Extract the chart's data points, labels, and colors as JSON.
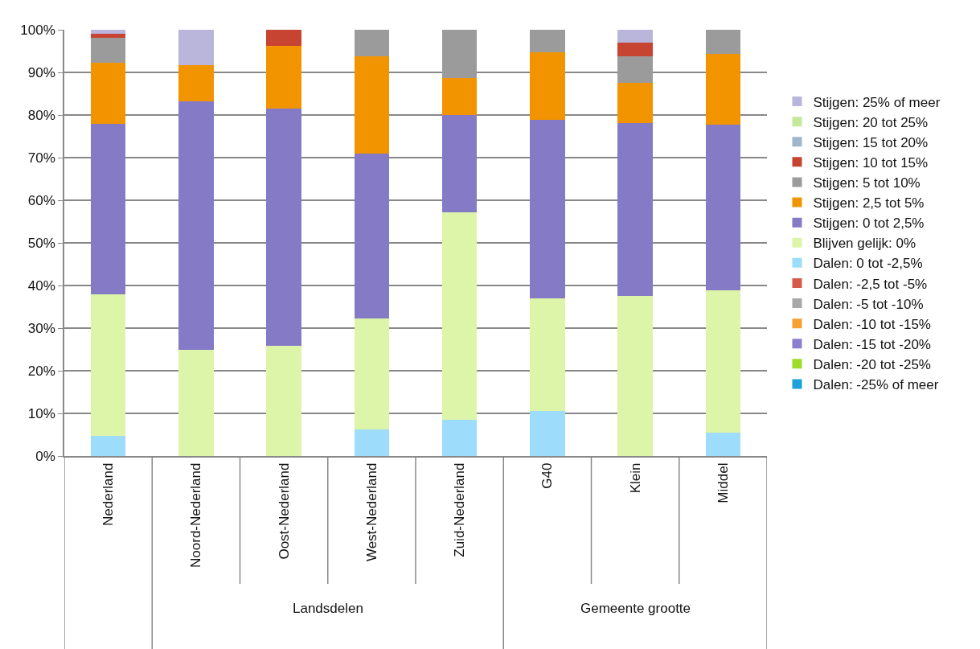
{
  "chart_data": {
    "type": "bar",
    "stacked": true,
    "categories": [
      "Nederland",
      "Noord-Nederland",
      "Oost-Nederland",
      "West-Nederland",
      "Zuid-Nederland",
      "G40",
      "Klein",
      "Middel"
    ],
    "series": [
      {
        "name": "Dalen: -25% of meer",
        "color": "#1ea0dc",
        "values": [
          0,
          0,
          0,
          0,
          0,
          0,
          0,
          0
        ]
      },
      {
        "name": "Dalen: -20 tot -25%",
        "color": "#9ddc2a",
        "values": [
          0,
          0,
          0,
          0,
          0,
          0,
          0,
          0
        ]
      },
      {
        "name": "Dalen: -15 tot -20%",
        "color": "#8d7fd0",
        "values": [
          0,
          0,
          0,
          0,
          0,
          0,
          0,
          0
        ]
      },
      {
        "name": "Dalen: -10 tot -15%",
        "color": "#f5a030",
        "values": [
          0,
          0,
          0,
          0,
          0,
          0,
          0,
          0
        ]
      },
      {
        "name": "Dalen: -5 tot -10%",
        "color": "#a8a8a8",
        "values": [
          0,
          0,
          0,
          0,
          0,
          0,
          0,
          0
        ]
      },
      {
        "name": "Dalen: -2,5 tot -5%",
        "color": "#d65a4a",
        "values": [
          0,
          0,
          0,
          0,
          0,
          0,
          0,
          0
        ]
      },
      {
        "name": "Dalen: 0 tot -2,5%",
        "color": "#9ddcfa",
        "values": [
          4.7,
          0,
          0,
          6.3,
          8.5,
          10.5,
          0,
          5.5
        ]
      },
      {
        "name": "Blijven gelijk: 0%",
        "color": "#dcf5a8",
        "values": [
          33.3,
          25.0,
          25.9,
          26.0,
          48.7,
          26.4,
          37.5,
          33.4
        ]
      },
      {
        "name": "Stijgen: 0 tot 2,5%",
        "color": "#857ac6",
        "values": [
          40.0,
          58.3,
          55.6,
          38.6,
          22.8,
          42.0,
          40.6,
          38.9
        ]
      },
      {
        "name": "Stijgen: 2,5 tot 5%",
        "color": "#f29400",
        "values": [
          14.3,
          8.4,
          14.8,
          22.8,
          8.6,
          15.8,
          9.4,
          16.6
        ]
      },
      {
        "name": "Stijgen: 5 tot 10%",
        "color": "#9b9b9b",
        "values": [
          5.8,
          0,
          0,
          6.3,
          11.4,
          5.3,
          6.3,
          5.6
        ]
      },
      {
        "name": "Stijgen: 10 tot 15%",
        "color": "#c84432",
        "values": [
          1.0,
          0,
          3.7,
          0,
          0,
          0,
          3.1,
          0
        ]
      },
      {
        "name": "Stijgen: 15 tot 20%",
        "color": "#9fb6cc",
        "values": [
          0,
          0,
          0,
          0,
          0,
          0,
          0,
          0
        ]
      },
      {
        "name": "Stijgen: 20 tot 25%",
        "color": "#c4e89a",
        "values": [
          0,
          0,
          0,
          0,
          0,
          0,
          0,
          0
        ]
      },
      {
        "name": "Stijgen: 25% of meer",
        "color": "#bab6db",
        "values": [
          0.9,
          8.3,
          0,
          0,
          0,
          0,
          3.1,
          0
        ]
      }
    ],
    "ylim": [
      0,
      100
    ],
    "yticks": [
      {
        "value": 0,
        "label": "0%"
      },
      {
        "value": 10,
        "label": "10%"
      },
      {
        "value": 20,
        "label": "20%"
      },
      {
        "value": 30,
        "label": "30%"
      },
      {
        "value": 40,
        "label": "40%"
      },
      {
        "value": 50,
        "label": "50%"
      },
      {
        "value": 60,
        "label": "60%"
      },
      {
        "value": 70,
        "label": "70%"
      },
      {
        "value": 80,
        "label": "80%"
      },
      {
        "value": 90,
        "label": "90%"
      },
      {
        "value": 100,
        "label": "100%"
      }
    ],
    "grid": "y",
    "legend": "right",
    "annotations": [
      "Landsdelen",
      "Gemeente grootte"
    ]
  }
}
